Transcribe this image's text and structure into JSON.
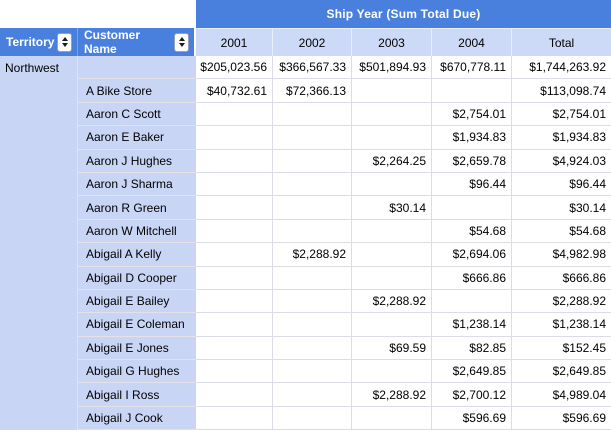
{
  "pivot": {
    "group_header": "Ship Year (Sum Total Due)",
    "row_headers": [
      {
        "label": "Territory"
      },
      {
        "label": "Customer Name"
      }
    ],
    "col_headers": [
      "2001",
      "2002",
      "2003",
      "2004",
      "Total"
    ],
    "territory": "Northwest",
    "rows": [
      {
        "customer": "",
        "values": [
          "$205,023.56",
          "$366,567.33",
          "$501,894.93",
          "$670,778.11",
          "$1,744,263.92"
        ]
      },
      {
        "customer": "A Bike Store",
        "values": [
          "$40,732.61",
          "$72,366.13",
          "",
          "",
          "$113,098.74"
        ]
      },
      {
        "customer": "Aaron C Scott",
        "values": [
          "",
          "",
          "",
          "$2,754.01",
          "$2,754.01"
        ]
      },
      {
        "customer": "Aaron E Baker",
        "values": [
          "",
          "",
          "",
          "$1,934.83",
          "$1,934.83"
        ]
      },
      {
        "customer": "Aaron J Hughes",
        "values": [
          "",
          "",
          "$2,264.25",
          "$2,659.78",
          "$4,924.03"
        ]
      },
      {
        "customer": "Aaron J Sharma",
        "values": [
          "",
          "",
          "",
          "$96.44",
          "$96.44"
        ]
      },
      {
        "customer": "Aaron R Green",
        "values": [
          "",
          "",
          "$30.14",
          "",
          "$30.14"
        ]
      },
      {
        "customer": "Aaron W Mitchell",
        "values": [
          "",
          "",
          "",
          "$54.68",
          "$54.68"
        ]
      },
      {
        "customer": "Abigail A Kelly",
        "values": [
          "",
          "$2,288.92",
          "",
          "$2,694.06",
          "$4,982.98"
        ]
      },
      {
        "customer": "Abigail D Cooper",
        "values": [
          "",
          "",
          "",
          "$666.86",
          "$666.86"
        ]
      },
      {
        "customer": "Abigail E Bailey",
        "values": [
          "",
          "",
          "$2,288.92",
          "",
          "$2,288.92"
        ]
      },
      {
        "customer": "Abigail E Coleman",
        "values": [
          "",
          "",
          "",
          "$1,238.14",
          "$1,238.14"
        ]
      },
      {
        "customer": "Abigail E Jones",
        "values": [
          "",
          "",
          "$69.59",
          "$82.85",
          "$152.45"
        ]
      },
      {
        "customer": "Abigail G Hughes",
        "values": [
          "",
          "",
          "",
          "$2,649.85",
          "$2,649.85"
        ]
      },
      {
        "customer": "Abigail I Ross",
        "values": [
          "",
          "",
          "$2,288.92",
          "$2,700.12",
          "$4,989.04"
        ]
      },
      {
        "customer": "Abigail J Cook",
        "values": [
          "",
          "",
          "",
          "$596.69",
          "$596.69"
        ]
      }
    ],
    "icons": {
      "sort": "sort-up-down-icon"
    },
    "colors": {
      "header_blue": "#4a80dd",
      "light_blue_header": "#ccdaf7",
      "light_blue_cells": "#c9d5f5",
      "grid_line": "#dcdce6",
      "header_text": "#ffffff",
      "cell_text": "#000000"
    }
  }
}
